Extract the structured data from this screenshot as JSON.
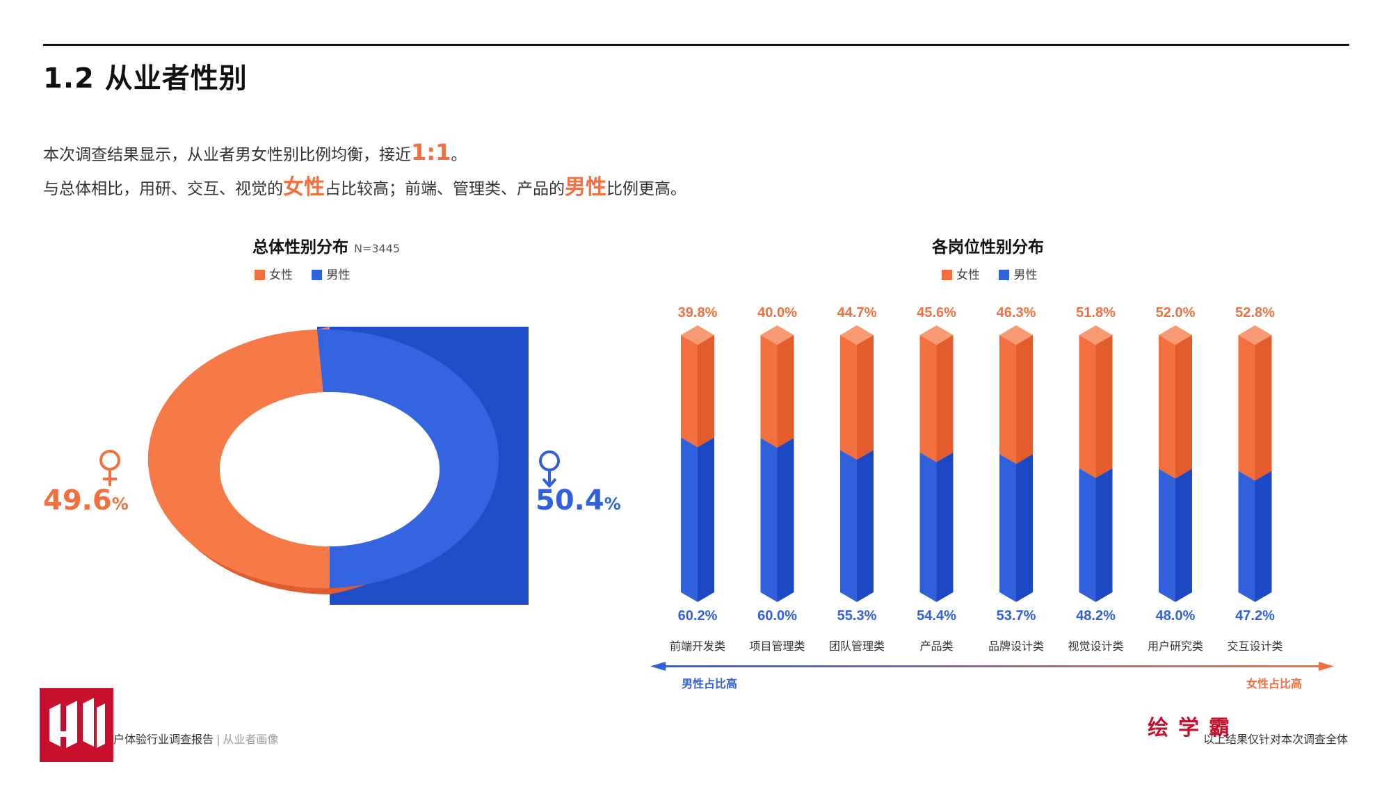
{
  "page": {
    "title": "1.2 从业者性别",
    "intro_line1": {
      "text": "本次调查结果显示，从业者男女性别比例均衡，接近",
      "highlight": "1:1",
      "tail": "。"
    },
    "intro_line2": {
      "part1": "与总体相比，用研、交互、视觉的",
      "hl1": "女性",
      "part2": "占比较高；前端、管理类、产品的",
      "hl2": "男性",
      "part3": "比例更高。"
    }
  },
  "colors": {
    "female": "#f2703f",
    "male": "#3060dc",
    "brand": "#c8102e"
  },
  "legend": {
    "female": "女性",
    "male": "男性"
  },
  "left_chart": {
    "title": "总体性别分布",
    "n_label": "N=3445",
    "female_pct": "49.6",
    "male_pct": "50.4",
    "unit": "%"
  },
  "right_chart": {
    "title": "各岗位性别分布",
    "arrow_left": "男性占比高",
    "arrow_right": "女性占比高"
  },
  "chart_data": [
    {
      "type": "pie",
      "title": "总体性别分布",
      "subtitle": "N=3445",
      "labels": [
        "女性",
        "男性"
      ],
      "values": [
        49.6,
        50.4
      ],
      "unit": "%"
    },
    {
      "type": "bar",
      "stacked": true,
      "title": "各岗位性别分布",
      "categories": [
        "前端开发类",
        "项目管理类",
        "团队管理类",
        "产品类",
        "品牌设计类",
        "视觉设计类",
        "用户研究类",
        "交互设计类"
      ],
      "series": [
        {
          "name": "女性",
          "values": [
            39.8,
            40.0,
            44.7,
            45.6,
            46.3,
            51.8,
            52.0,
            52.8
          ]
        },
        {
          "name": "男性",
          "values": [
            60.2,
            60.0,
            55.3,
            54.4,
            53.7,
            48.2,
            48.0,
            47.2
          ]
        }
      ],
      "value_labels_female": [
        "39.8",
        "40.0",
        "44.7",
        "45.6",
        "46.3",
        "51.8",
        "52.0",
        "52.8"
      ],
      "value_labels_male": [
        "60.2",
        "60.0",
        "55.3",
        "54.4",
        "53.7",
        "48.2",
        "48.0",
        "47.2"
      ],
      "unit": "%",
      "ylim": [
        0,
        100
      ],
      "legend": "top"
    }
  ],
  "footer": {
    "left_main": "户体验行业调查报告",
    "left_sep": "|",
    "left_sub": "从业者画像",
    "right": "以上结果仅针对本次调查全体",
    "brand": "绘学霸"
  }
}
